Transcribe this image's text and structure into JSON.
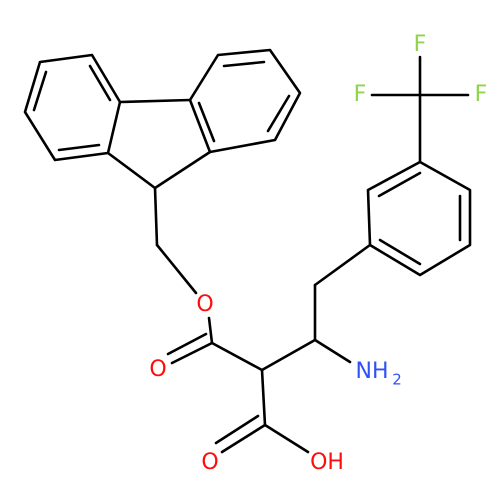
{
  "atoms": {
    "f_top": "F",
    "f_left": "F",
    "f_right": "F",
    "o_ester": "O",
    "o_carbonyl": "O",
    "o_acid": "O",
    "hydroxyl": "OH",
    "amine": "NH",
    "amine_sub": "2"
  }
}
